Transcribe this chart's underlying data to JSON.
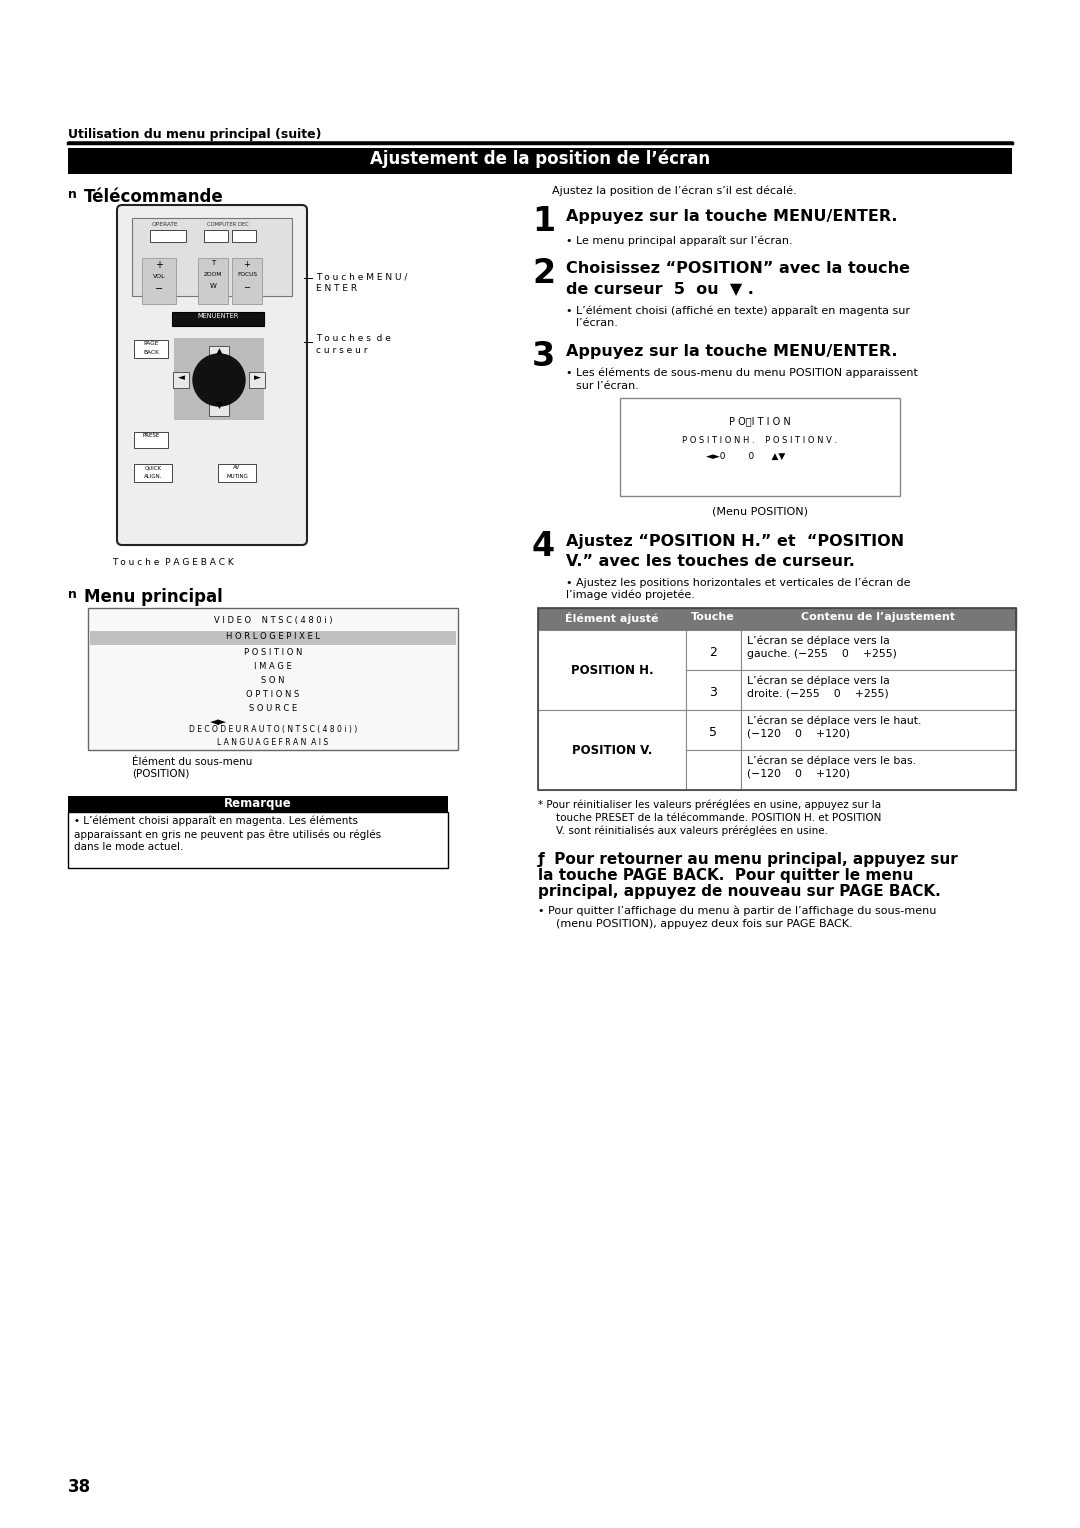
{
  "bg": "#ffffff",
  "header": "Utilisation du menu principal (suite)",
  "sec_title": "Ajustement de la position de l’écran",
  "left_title1": "Télécommande",
  "left_title2": "Menu principal",
  "right_intro": "Ajustez la position de l’écran s’il est décalé.",
  "s1_head": "Appuyez sur la touche MENU/ENTER.",
  "s1_sub": "• Le menu principal apparaît sur l’écran.",
  "s2_h1": "Choisissez “POSITION” avec la touche",
  "s2_h2": "de curseur  5  ou  ▼ .",
  "s2_sub1": "• L’élément choisi (affiché en texte) apparaît en magenta sur",
  "s2_sub2": "l’écran.",
  "s3_head": "Appuyez sur la touche MENU/ENTER.",
  "s3_sub1": "• Les éléments de sous-menu du menu POSITION apparaissent",
  "s3_sub2": "sur l’écran.",
  "menu_cap": "(Menu POSITION)",
  "s4_h1": "Ajustez “POSITION H.” et  “POSITION",
  "s4_h2": "V.” avec les touches de curseur.",
  "s4_sub1": "• Ajustez les positions horizontales et verticales de l’écran de",
  "s4_sub2": "l’image vidéo projetée.",
  "th1": "Élément ajusté",
  "th2": "Touche",
  "th3": "Contenu de l’ajustement",
  "ph": "POSITION H.",
  "pv": "POSITION V.",
  "r1t": "2",
  "r1c1": "L’écran se déplace vers la",
  "r1c2": "gauche. (−255    0    +255)",
  "r2t": "3",
  "r2c1": "L’écran se déplace vers la",
  "r2c2": "droite. (−255    0    +255)",
  "r3t": "5",
  "r3c1": "L’écran se déplace vers le haut.",
  "r3c2": "(−120    0    +120)",
  "r4t": "",
  "r4c1": "L’écran se déplace vers le bas.",
  "r4c2": "(−120    0    +120)",
  "fn1": "* Pour réinitialiser les valeurs préréglées en usine, appuyez sur la",
  "fn2": "touche PRESET de la télécommande. POSITION H. et POSITION",
  "fn3": "V. sont réinitialisés aux valeurs préréglées en usine.",
  "sf1": "ƒ  Pour retourner au menu principal, appuyez sur",
  "sf2": "la touche PAGE BACK.  Pour quitter le menu",
  "sf3": "principal, appuyez de nouveau sur PAGE BACK.",
  "sf_sub1": "• Pour quitter l’affichage du menu à partir de l’affichage du sous-menu",
  "sf_sub2": "(menu POSITION), appuyez deux fois sur PAGE BACK.",
  "rem_title": "Remarque",
  "rem1": "• L’élément choisi apparaît en magenta. Les éléments",
  "rem2": "apparaissant en gris ne peuvent pas être utilisés ou réglés",
  "rem3": "dans le mode actuel.",
  "page_num": "38",
  "sub_cap1": "Élément du sous-menu",
  "sub_cap2": "(POSITION)",
  "lbl_menu1": "T o u c h e M E N U /",
  "lbl_menu2": "E N T E R",
  "lbl_cur1": "T o u c h e s  d e",
  "lbl_cur2": "c u r s e u r",
  "lbl_pageback": "T o u c h e  P A G E B A C K"
}
